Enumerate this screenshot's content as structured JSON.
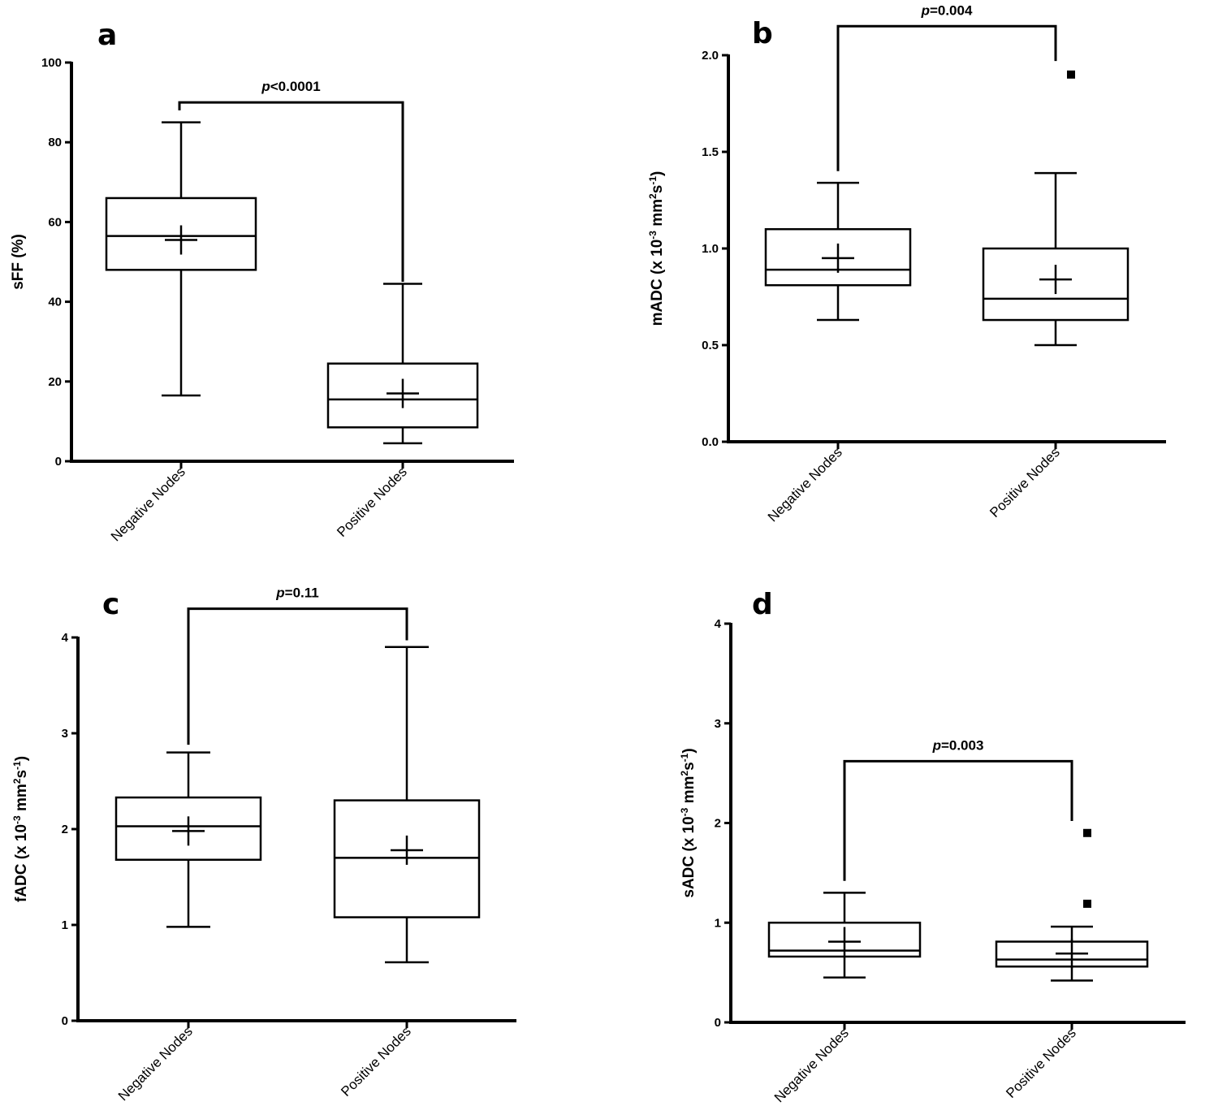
{
  "chart_data": [
    {
      "type": "box",
      "panel": "a",
      "categories": [
        "Negative Nodes",
        "Positive Nodes"
      ],
      "ylabel": "sFF (%)",
      "ylabel_parts": [],
      "ylim": [
        0,
        100
      ],
      "yticks": [
        0,
        20,
        40,
        60,
        80,
        100
      ],
      "ytick_labels": [
        "0",
        "20",
        "40",
        "60",
        "80",
        "100"
      ],
      "boxes": [
        {
          "name": "Negative Nodes",
          "min": 16.5,
          "q1": 48,
          "median": 56.5,
          "q3": 66,
          "max": 85,
          "mean": 55.5,
          "outliers": []
        },
        {
          "name": "Positive Nodes",
          "min": 4.5,
          "q1": 8.5,
          "median": 15.5,
          "q3": 24.5,
          "max": 44.5,
          "mean": 17,
          "outliers": []
        }
      ],
      "significance": {
        "p_italic": "p",
        "p_rest": "<0.0001",
        "bracket_y": 90,
        "left_drop": 88,
        "right_drop": 45
      }
    },
    {
      "type": "box",
      "panel": "b",
      "categories": [
        "Negative Nodes",
        "Positive Nodes"
      ],
      "ylabel": "",
      "ylabel_parts": [
        {
          "t": "mADC (x 10"
        },
        {
          "t": "-3",
          "sup": true
        },
        {
          "t": " mm"
        },
        {
          "t": "2",
          "sup": true
        },
        {
          "t": "s"
        },
        {
          "t": "-1",
          "sup": true
        },
        {
          "t": ")"
        }
      ],
      "ylim": [
        0,
        2.0
      ],
      "yticks": [
        0,
        0.5,
        1.0,
        1.5,
        2.0
      ],
      "ytick_labels": [
        "0.0",
        "0.5",
        "1.0",
        "1.5",
        "2.0"
      ],
      "boxes": [
        {
          "name": "Negative Nodes",
          "min": 0.63,
          "q1": 0.81,
          "median": 0.89,
          "q3": 1.1,
          "max": 1.34,
          "mean": 0.95,
          "outliers": []
        },
        {
          "name": "Positive Nodes",
          "min": 0.5,
          "q1": 0.63,
          "median": 0.74,
          "q3": 1.0,
          "max": 1.39,
          "mean": 0.84,
          "outliers": [
            1.9
          ]
        }
      ],
      "significance": {
        "p_italic": "p",
        "p_rest": "=0.004",
        "bracket_y": 2.15,
        "left_drop": 1.4,
        "right_drop": 1.97
      }
    },
    {
      "type": "box",
      "panel": "c",
      "categories": [
        "Negative Nodes",
        "Positive Nodes"
      ],
      "ylabel": "",
      "ylabel_parts": [
        {
          "t": "fADC (x 10"
        },
        {
          "t": "-3",
          "sup": true
        },
        {
          "t": " mm"
        },
        {
          "t": "2",
          "sup": true
        },
        {
          "t": "s"
        },
        {
          "t": "-1",
          "sup": true
        },
        {
          "t": ")"
        }
      ],
      "ylim": [
        0,
        4
      ],
      "yticks": [
        0,
        1,
        2,
        3,
        4
      ],
      "ytick_labels": [
        "0",
        "1",
        "2",
        "3",
        "4"
      ],
      "boxes": [
        {
          "name": "Negative Nodes",
          "min": 0.98,
          "q1": 1.68,
          "median": 2.03,
          "q3": 2.33,
          "max": 2.8,
          "mean": 1.98,
          "outliers": []
        },
        {
          "name": "Positive Nodes",
          "min": 0.61,
          "q1": 1.08,
          "median": 1.7,
          "q3": 2.3,
          "max": 3.9,
          "mean": 1.78,
          "outliers": []
        }
      ],
      "significance": {
        "p_italic": "p",
        "p_rest": "=0.11",
        "bracket_y": 4.3,
        "left_drop": 2.88,
        "right_drop": 3.97
      }
    },
    {
      "type": "box",
      "panel": "d",
      "categories": [
        "Negative Nodes",
        "Positive Nodes"
      ],
      "ylabel": "",
      "ylabel_parts": [
        {
          "t": "sADC (x 10"
        },
        {
          "t": "-3",
          "sup": true
        },
        {
          "t": " mm"
        },
        {
          "t": "2",
          "sup": true
        },
        {
          "t": "s"
        },
        {
          "t": "-1",
          "sup": true
        },
        {
          "t": ")"
        }
      ],
      "ylim": [
        0,
        4
      ],
      "yticks": [
        0,
        1,
        2,
        3,
        4
      ],
      "ytick_labels": [
        "0",
        "1",
        "2",
        "3",
        "4"
      ],
      "boxes": [
        {
          "name": "Negative Nodes",
          "min": 0.45,
          "q1": 0.66,
          "median": 0.72,
          "q3": 1.0,
          "max": 1.3,
          "mean": 0.81,
          "outliers": []
        },
        {
          "name": "Positive Nodes",
          "min": 0.42,
          "q1": 0.56,
          "median": 0.63,
          "q3": 0.81,
          "max": 0.96,
          "mean": 0.69,
          "outliers": [
            1.19,
            1.9
          ]
        }
      ],
      "significance": {
        "p_italic": "p",
        "p_rest": "=0.003",
        "bracket_y": 2.62,
        "left_drop": 1.42,
        "right_drop": 2.02
      }
    }
  ]
}
